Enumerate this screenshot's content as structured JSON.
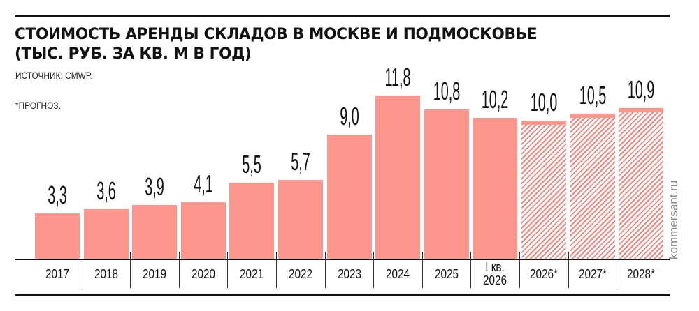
{
  "header": {
    "title_line1": "СТОИМОСТЬ АРЕНДЫ СКЛАДОВ В МОСКВЕ И ПОДМОСКОВЬЕ",
    "title_line2": "(ТЫС. РУБ. ЗА КВ. М В ГОД)",
    "source": "ИСТОЧНИК: CMWP.",
    "note": "*ПРОГНОЗ."
  },
  "watermark": "kommersant.ru",
  "colors": {
    "bar": "#fd978e",
    "hatch": "#e98a80",
    "text": "#111111"
  },
  "bars": [
    {
      "label": "2017",
      "value_label": "3,3",
      "value": 3.3,
      "forecast": false
    },
    {
      "label": "2018",
      "value_label": "3,6",
      "value": 3.6,
      "forecast": false
    },
    {
      "label": "2019",
      "value_label": "3,9",
      "value": 3.9,
      "forecast": false
    },
    {
      "label": "2020",
      "value_label": "4,1",
      "value": 4.1,
      "forecast": false
    },
    {
      "label": "2021",
      "value_label": "5,5",
      "value": 5.5,
      "forecast": false
    },
    {
      "label": "2022",
      "value_label": "5,7",
      "value": 5.7,
      "forecast": false
    },
    {
      "label": "2023",
      "value_label": "9,0",
      "value": 9.0,
      "forecast": false
    },
    {
      "label": "2024",
      "value_label": "11,8",
      "value": 11.8,
      "forecast": false
    },
    {
      "label": "2025",
      "value_label": "10,8",
      "value": 10.8,
      "forecast": false
    },
    {
      "label": "I кв.\n2026",
      "value_label": "10,2",
      "value": 10.2,
      "forecast": false
    },
    {
      "label": "2026*",
      "value_label": "10,0",
      "value": 10.0,
      "forecast": true
    },
    {
      "label": "2027*",
      "value_label": "10,5",
      "value": 10.5,
      "forecast": true
    },
    {
      "label": "2028*",
      "value_label": "10,9",
      "value": 10.9,
      "forecast": true
    }
  ],
  "chart_data": {
    "type": "bar",
    "title": "Стоимость аренды складов в Москве и Подмосковье (тыс. руб. за кв. м в год)",
    "subtitle": "Источник: CMWP. *Прогноз.",
    "categories": [
      "2017",
      "2018",
      "2019",
      "2020",
      "2021",
      "2022",
      "2023",
      "2024",
      "2025",
      "I кв. 2026",
      "2026*",
      "2027*",
      "2028*"
    ],
    "values": [
      3.3,
      3.6,
      3.9,
      4.1,
      5.5,
      5.7,
      9.0,
      11.8,
      10.8,
      10.2,
      10.0,
      10.5,
      10.9
    ],
    "forecast": [
      false,
      false,
      false,
      false,
      false,
      false,
      false,
      false,
      false,
      false,
      true,
      true,
      true
    ],
    "xlabel": "",
    "ylabel": "тыс. руб. за кв. м в год",
    "data_labels": true,
    "grid": false,
    "legend": null,
    "annotations": [
      "*прогноз (hatched bars)",
      "kommersant.ru"
    ]
  }
}
